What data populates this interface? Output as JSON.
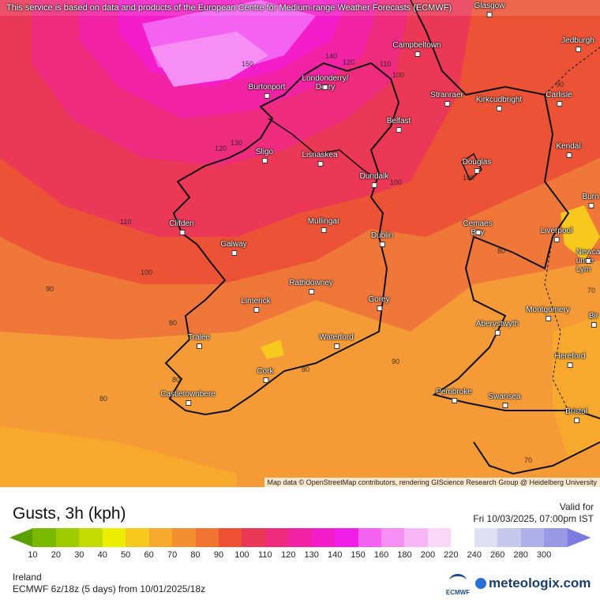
{
  "notice": "This service is based on data and products of the European Centre for Medium-range Weather Forecasts (ECMWF)",
  "attribution": "Map data © OpenStreetMap contributors, rendering GIScience Research Group @ Heidelberg University",
  "title": "Gusts, 3h (kph)",
  "valid_label": "Valid for",
  "valid_time": "Fri 10/03/2025, 07:00pm IST",
  "region": "Ireland",
  "model": "ECMWF 6z/18z (5 days) from 10/01/2025/18z",
  "logo_ecmwf": "ECMWF",
  "logo_brand": "meteologix.com",
  "colors": {
    "scale": [
      "#5aa000",
      "#7bb800",
      "#9fcc00",
      "#c2dc00",
      "#ecef00",
      "#f7c81d",
      "#f6a92c",
      "#f38e31",
      "#f07332",
      "#ec5134",
      "#ea3856",
      "#ee2b7d",
      "#f122a4",
      "#f31ec9",
      "#f11ee8",
      "#f362f0",
      "#f68ef3",
      "#f8b5f5",
      "#fad6f8",
      "#ffffff",
      "#e0e0f5",
      "#c8c8ef",
      "#b0b0ea",
      "#9898e4",
      "#7c7ce0"
    ]
  },
  "scale_ticks": [
    "10",
    "20",
    "30",
    "40",
    "50",
    "60",
    "70",
    "80",
    "90",
    "100",
    "110",
    "120",
    "130",
    "140",
    "150",
    "160",
    "180",
    "200",
    "220",
    "240",
    "260",
    "280",
    "300"
  ],
  "cities": [
    {
      "name": "Glasgow"
    },
    {
      "name": "Campbeltown"
    },
    {
      "name": "Jedburgh"
    },
    {
      "name": "Burtonport"
    },
    {
      "name": "Londonderry/\nDerry"
    },
    {
      "name": "Stranraer"
    },
    {
      "name": "Kirkcudbright"
    },
    {
      "name": "Carlisle"
    },
    {
      "name": "Belfast"
    },
    {
      "name": "Kendal"
    },
    {
      "name": "Sligo"
    },
    {
      "name": "Lisnaskea"
    },
    {
      "name": "Douglas"
    },
    {
      "name": "Dundalk"
    },
    {
      "name": "Clifden"
    },
    {
      "name": "Mullingar"
    },
    {
      "name": "Dublin"
    },
    {
      "name": "Cemaes\nBay"
    },
    {
      "name": "Liverpool"
    },
    {
      "name": "Galway"
    },
    {
      "name": "Rathdowney"
    },
    {
      "name": "Limerick"
    },
    {
      "name": "Gorey"
    },
    {
      "name": "Aberystwyth"
    },
    {
      "name": "Montgomery"
    },
    {
      "name": "Tralee"
    },
    {
      "name": "Waterford"
    },
    {
      "name": "Hereford"
    },
    {
      "name": "Cork"
    },
    {
      "name": "Castletownbere"
    },
    {
      "name": "Pembroke"
    },
    {
      "name": "Swansea"
    },
    {
      "name": "Bristol"
    },
    {
      "name": "Burn"
    },
    {
      "name": "Newca\nunde\nLym"
    },
    {
      "name": "Bir"
    }
  ],
  "contour_labels": [
    "150",
    "140",
    "120",
    "100",
    "110",
    "130",
    "120",
    "110",
    "100",
    "90",
    "80",
    "80",
    "80",
    "80",
    "90",
    "80",
    "70",
    "100",
    "100",
    "90",
    "70"
  ]
}
